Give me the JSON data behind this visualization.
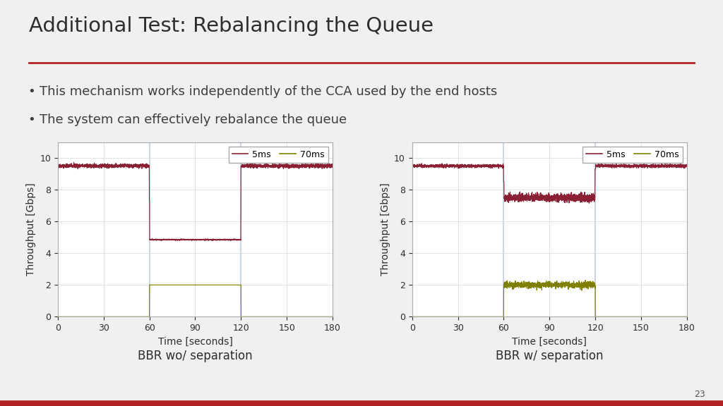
{
  "title": "Additional Test: Rebalancing the Queue",
  "bullet1": "This mechanism works independently of the CCA used by the end hosts",
  "bullet2": "The system can effectively rebalance the queue",
  "slide_number": "23",
  "title_color": "#2d2d2d",
  "title_underline_color": "#b22222",
  "background_color": "#f0f0f0",
  "bullet_color": "#3d3d3d",
  "red_line_color": "#8b2035",
  "green_line_color": "#808000",
  "vline_color": "#c8d8e8",
  "grid_color": "#d8d8d8",
  "xlabel": "Time [seconds]",
  "ylabel": "Throughput [Gbps]",
  "label1": "5ms",
  "label2": "70ms",
  "caption1": "BBR wo/ separation",
  "caption2": "BBR w/ separation",
  "xlim": [
    0,
    180
  ],
  "ylim": [
    0,
    11
  ],
  "yticks": [
    0,
    2,
    4,
    6,
    8,
    10
  ],
  "xticks": [
    0,
    30,
    60,
    90,
    120,
    150,
    180
  ],
  "vlines": [
    60,
    120
  ]
}
